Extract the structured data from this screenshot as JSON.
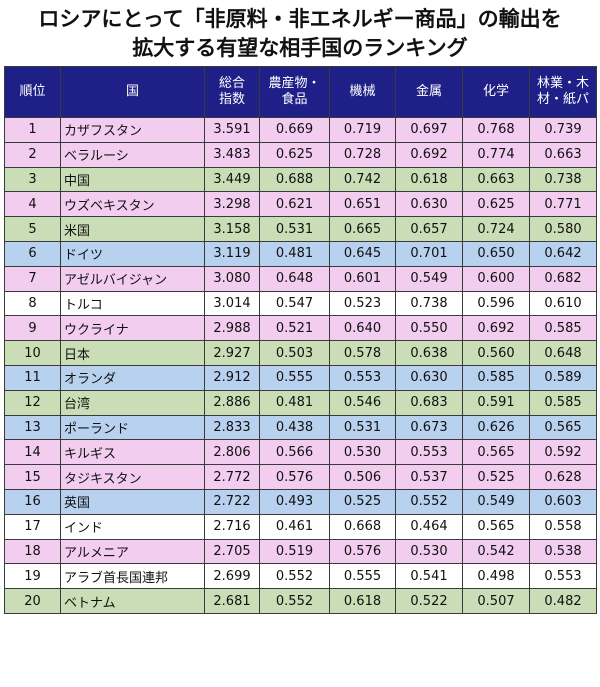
{
  "title": {
    "line1": "ロシアにとって「非原料・非エネルギー商品」の輸出を",
    "line2": "拡大する有望な相手国のランキング"
  },
  "headers": {
    "rank": "順位",
    "country": "国",
    "total": [
      "総合",
      "指数"
    ],
    "agri": [
      "農産物・",
      "食品"
    ],
    "machinery": "機械",
    "metal": "金属",
    "chemical": "化学",
    "forestry": [
      "林業・木",
      "材・紙パ"
    ]
  },
  "colors": {
    "header_bg": "#1f1f88",
    "pink": "#f2cdf0",
    "green": "#c9ddb6",
    "blue": "#b8d1ef",
    "white": "#ffffff"
  },
  "rows": [
    {
      "rank": "1",
      "country": "カザフスタン",
      "total": "3.591",
      "agri": "0.669",
      "machinery": "0.719",
      "metal": "0.697",
      "chemical": "0.768",
      "forestry": "0.739",
      "color": "pink"
    },
    {
      "rank": "2",
      "country": "ベラルーシ",
      "total": "3.483",
      "agri": "0.625",
      "machinery": "0.728",
      "metal": "0.692",
      "chemical": "0.774",
      "forestry": "0.663",
      "color": "pink"
    },
    {
      "rank": "3",
      "country": "中国",
      "total": "3.449",
      "agri": "0.688",
      "machinery": "0.742",
      "metal": "0.618",
      "chemical": "0.663",
      "forestry": "0.738",
      "color": "green"
    },
    {
      "rank": "4",
      "country": "ウズベキスタン",
      "total": "3.298",
      "agri": "0.621",
      "machinery": "0.651",
      "metal": "0.630",
      "chemical": "0.625",
      "forestry": "0.771",
      "color": "pink"
    },
    {
      "rank": "5",
      "country": "米国",
      "total": "3.158",
      "agri": "0.531",
      "machinery": "0.665",
      "metal": "0.657",
      "chemical": "0.724",
      "forestry": "0.580",
      "color": "green"
    },
    {
      "rank": "6",
      "country": "ドイツ",
      "total": "3.119",
      "agri": "0.481",
      "machinery": "0.645",
      "metal": "0.701",
      "chemical": "0.650",
      "forestry": "0.642",
      "color": "blue"
    },
    {
      "rank": "7",
      "country": "アゼルバイジャン",
      "total": "3.080",
      "agri": "0.648",
      "machinery": "0.601",
      "metal": "0.549",
      "chemical": "0.600",
      "forestry": "0.682",
      "color": "pink"
    },
    {
      "rank": "8",
      "country": "トルコ",
      "total": "3.014",
      "agri": "0.547",
      "machinery": "0.523",
      "metal": "0.738",
      "chemical": "0.596",
      "forestry": "0.610",
      "color": "white"
    },
    {
      "rank": "9",
      "country": "ウクライナ",
      "total": "2.988",
      "agri": "0.521",
      "machinery": "0.640",
      "metal": "0.550",
      "chemical": "0.692",
      "forestry": "0.585",
      "color": "pink"
    },
    {
      "rank": "10",
      "country": "日本",
      "total": "2.927",
      "agri": "0.503",
      "machinery": "0.578",
      "metal": "0.638",
      "chemical": "0.560",
      "forestry": "0.648",
      "color": "green"
    },
    {
      "rank": "11",
      "country": "オランダ",
      "total": "2.912",
      "agri": "0.555",
      "machinery": "0.553",
      "metal": "0.630",
      "chemical": "0.585",
      "forestry": "0.589",
      "color": "blue"
    },
    {
      "rank": "12",
      "country": "台湾",
      "total": "2.886",
      "agri": "0.481",
      "machinery": "0.546",
      "metal": "0.683",
      "chemical": "0.591",
      "forestry": "0.585",
      "color": "green"
    },
    {
      "rank": "13",
      "country": "ポーランド",
      "total": "2.833",
      "agri": "0.438",
      "machinery": "0.531",
      "metal": "0.673",
      "chemical": "0.626",
      "forestry": "0.565",
      "color": "blue"
    },
    {
      "rank": "14",
      "country": "キルギス",
      "total": "2.806",
      "agri": "0.566",
      "machinery": "0.530",
      "metal": "0.553",
      "chemical": "0.565",
      "forestry": "0.592",
      "color": "pink"
    },
    {
      "rank": "15",
      "country": "タジキスタン",
      "total": "2.772",
      "agri": "0.576",
      "machinery": "0.506",
      "metal": "0.537",
      "chemical": "0.525",
      "forestry": "0.628",
      "color": "pink"
    },
    {
      "rank": "16",
      "country": "英国",
      "total": "2.722",
      "agri": "0.493",
      "machinery": "0.525",
      "metal": "0.552",
      "chemical": "0.549",
      "forestry": "0.603",
      "color": "blue"
    },
    {
      "rank": "17",
      "country": "インド",
      "total": "2.716",
      "agri": "0.461",
      "machinery": "0.668",
      "metal": "0.464",
      "chemical": "0.565",
      "forestry": "0.558",
      "color": "white"
    },
    {
      "rank": "18",
      "country": "アルメニア",
      "total": "2.705",
      "agri": "0.519",
      "machinery": "0.576",
      "metal": "0.530",
      "chemical": "0.542",
      "forestry": "0.538",
      "color": "pink"
    },
    {
      "rank": "19",
      "country": "アラブ首長国連邦",
      "total": "2.699",
      "agri": "0.552",
      "machinery": "0.555",
      "metal": "0.541",
      "chemical": "0.498",
      "forestry": "0.553",
      "color": "white"
    },
    {
      "rank": "20",
      "country": "ベトナム",
      "total": "2.681",
      "agri": "0.552",
      "machinery": "0.618",
      "metal": "0.522",
      "chemical": "0.507",
      "forestry": "0.482",
      "color": "green"
    }
  ]
}
